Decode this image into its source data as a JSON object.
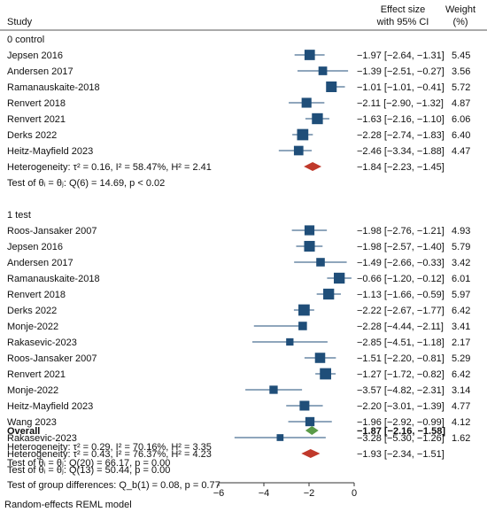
{
  "header": {
    "study": "Study",
    "effect_line1": "Effect size",
    "effect_line2": "with 95% CI",
    "weight_line1": "Weight",
    "weight_line2": "(%)"
  },
  "colors": {
    "study_marker": "#1f4e79",
    "subgroup_diamond": "#c0392b",
    "overall_diamond": "#5a9b48",
    "line": "#1f4e79"
  },
  "footer_note": "Random-effects REML model",
  "chart_data": {
    "type": "forest",
    "x_axis": {
      "range": [
        -6,
        0
      ],
      "ticks": [
        -6,
        -4,
        -2,
        0
      ],
      "tick_labels": [
        "−6",
        "−4",
        "−2",
        "0"
      ]
    },
    "groups": [
      {
        "label": "0   control",
        "studies": [
          {
            "name": "Jepsen 2016",
            "es": -1.97,
            "lo": -2.64,
            "hi": -1.31,
            "ci_text": "−1.97 [−2.64, −1.31]",
            "weight": "5.45"
          },
          {
            "name": "Andersen 2017",
            "es": -1.39,
            "lo": -2.51,
            "hi": -0.27,
            "ci_text": "−1.39 [−2.51, −0.27]",
            "weight": "3.56"
          },
          {
            "name": "Ramanauskaite-2018",
            "es": -1.01,
            "lo": -1.01,
            "hi": -0.41,
            "ci_text": "−1.01 [−1.01, −0.41]",
            "weight": "5.72"
          },
          {
            "name": "Renvert 2018",
            "es": -2.11,
            "lo": -2.9,
            "hi": -1.32,
            "ci_text": "−2.11 [−2.90, −1.32]",
            "weight": "4.87"
          },
          {
            "name": "Renvert 2021",
            "es": -1.63,
            "lo": -2.16,
            "hi": -1.1,
            "ci_text": "−1.63 [−2.16, −1.10]",
            "weight": "6.06"
          },
          {
            "name": "Derks 2022",
            "es": -2.28,
            "lo": -2.74,
            "hi": -1.83,
            "ci_text": "−2.28 [−2.74, −1.83]",
            "weight": "6.40"
          },
          {
            "name": "Heitz-Mayfield 2023",
            "es": -2.46,
            "lo": -3.34,
            "hi": -1.88,
            "ci_text": "−2.46 [−3.34, −1.88]",
            "weight": "4.47"
          }
        ],
        "het": "Heterogeneity: τ² = 0.16, I² = 58.47%, H² = 2.41",
        "test": "Test of θᵢ = θⱼ: Q(6) = 14.69, p < 0.02",
        "summary": {
          "es": -1.84,
          "lo": -2.23,
          "hi": -1.45,
          "ci_text": "−1.84 [−2.23, −1.45]"
        }
      },
      {
        "label": "1   test",
        "studies": [
          {
            "name": "Roos-Jansaker 2007",
            "es": -1.98,
            "lo": -2.76,
            "hi": -1.21,
            "ci_text": "−1.98 [−2.76, −1.21]",
            "weight": "4.93"
          },
          {
            "name": "Jepsen 2016",
            "es": -1.98,
            "lo": -2.57,
            "hi": -1.4,
            "ci_text": "−1.98 [−2.57, −1.40]",
            "weight": "5.79"
          },
          {
            "name": "Andersen 2017",
            "es": -1.49,
            "lo": -2.66,
            "hi": -0.33,
            "ci_text": "−1.49 [−2.66, −0.33]",
            "weight": "3.42"
          },
          {
            "name": "Ramanauskaite-2018",
            "es": -0.66,
            "lo": -1.2,
            "hi": -0.12,
            "ci_text": "−0.66 [−1.20, −0.12]",
            "weight": "6.01"
          },
          {
            "name": "Renvert 2018",
            "es": -1.13,
            "lo": -1.66,
            "hi": -0.59,
            "ci_text": "−1.13 [−1.66, −0.59]",
            "weight": "5.97"
          },
          {
            "name": "Derks 2022",
            "es": -2.22,
            "lo": -2.67,
            "hi": -1.77,
            "ci_text": "−2.22 [−2.67, −1.77]",
            "weight": "6.42"
          },
          {
            "name": "Monje-2022",
            "es": -2.28,
            "lo": -4.44,
            "hi": -2.11,
            "ci_text": "−2.28 [−4.44, −2.11]",
            "weight": "3.41"
          },
          {
            "name": "Rakasevic-2023",
            "es": -2.85,
            "lo": -4.51,
            "hi": -1.18,
            "ci_text": "−2.85 [−4.51, −1.18]",
            "weight": "2.17"
          },
          {
            "name": "Roos-Jansaker 2007",
            "es": -1.51,
            "lo": -2.2,
            "hi": -0.81,
            "ci_text": "−1.51 [−2.20, −0.81]",
            "weight": "5.29"
          },
          {
            "name": "Renvert 2021",
            "es": -1.27,
            "lo": -1.72,
            "hi": -0.82,
            "ci_text": "−1.27 [−1.72, −0.82]",
            "weight": "6.42"
          },
          {
            "name": "Monje-2022",
            "es": -3.57,
            "lo": -4.82,
            "hi": -2.31,
            "ci_text": "−3.57 [−4.82, −2.31]",
            "weight": "3.14"
          },
          {
            "name": "Heitz-Mayfield 2023",
            "es": -2.2,
            "lo": -3.01,
            "hi": -1.39,
            "ci_text": "−2.20 [−3.01, −1.39]",
            "weight": "4.77"
          },
          {
            "name": "Wang 2023",
            "es": -1.96,
            "lo": -2.92,
            "hi": -0.99,
            "ci_text": "−1.96 [−2.92, −0.99]",
            "weight": "4.12"
          },
          {
            "name": "Rakasevic-2023",
            "es": -3.28,
            "lo": -5.3,
            "hi": -1.26,
            "ci_text": "−3.28 [−5.30, −1.26]",
            "weight": "1.62"
          }
        ],
        "het": "Heterogeneity: τ² = 0.43, I² = 76.37%, H² = 4.23",
        "test": "Test of θᵢ = θⱼ: Q(13) = 50.44, p = 0.00",
        "summary": {
          "es": -1.93,
          "lo": -2.34,
          "hi": -1.51,
          "ci_text": "−1.93 [−2.34, −1.51]"
        }
      }
    ],
    "overall": {
      "label": "Overall",
      "es": -1.87,
      "lo": -2.16,
      "hi": -1.58,
      "ci_text": "−1.87 [−2.16, −1.58]",
      "het": "Heterogeneity: τ² = 0.29, I² = 70.16%, H² = 3.35",
      "test": "Test of θᵢ = θⱼ: Q(20) = 66.17, p = 0.00"
    },
    "group_diff_test": "Test of group differences: Q_b(1) = 0.08, p = 0.77"
  }
}
